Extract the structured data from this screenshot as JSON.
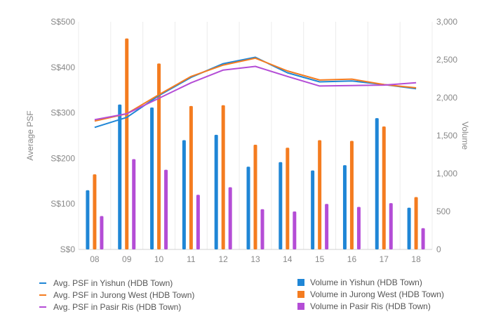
{
  "chart_data": {
    "type": "bar+line",
    "categories": [
      "08",
      "09",
      "10",
      "11",
      "12",
      "13",
      "14",
      "15",
      "16",
      "17",
      "18"
    ],
    "y_left": {
      "label": "Average PSF",
      "ticks": [
        "S$0",
        "S$100",
        "S$200",
        "S$300",
        "S$400",
        "S$500"
      ],
      "range": [
        0,
        500
      ]
    },
    "y_right": {
      "label": "Volume",
      "ticks": [
        "0",
        "500",
        "1,000",
        "1,500",
        "2,000",
        "2,500",
        "3,000"
      ],
      "range": [
        0,
        3000
      ]
    },
    "line_series": [
      {
        "name": "Avg. PSF in Yishun (HDB Town)",
        "color": "#1f86d6",
        "values": [
          268,
          290,
          338,
          378,
          408,
          422,
          388,
          368,
          370,
          362,
          353
        ]
      },
      {
        "name": "Avg. PSF in Jurong West (HDB Town)",
        "color": "#f47c20",
        "values": [
          282,
          298,
          340,
          380,
          405,
          420,
          392,
          372,
          374,
          362,
          355
        ]
      },
      {
        "name": "Avg. PSF in Pasir Ris (HDB Town)",
        "color": "#b44dd6",
        "values": [
          285,
          298,
          332,
          366,
          394,
          402,
          380,
          359,
          360,
          361,
          366
        ]
      }
    ],
    "bar_series": [
      {
        "name": "Volume in Yishun (HDB Town)",
        "color": "#1f86d6",
        "values": [
          780,
          1910,
          1870,
          1440,
          1510,
          1090,
          1150,
          1040,
          1110,
          1730,
          550
        ]
      },
      {
        "name": "Volume in Jurong West (HDB Town)",
        "color": "#f47c20",
        "values": [
          990,
          2780,
          2450,
          1890,
          1900,
          1380,
          1340,
          1440,
          1430,
          1620,
          690
        ]
      },
      {
        "name": "Volume in Pasir Ris (HDB Town)",
        "color": "#b44dd6",
        "values": [
          440,
          1190,
          1050,
          720,
          820,
          530,
          500,
          600,
          560,
          610,
          280
        ]
      }
    ],
    "grid": "vertical"
  }
}
